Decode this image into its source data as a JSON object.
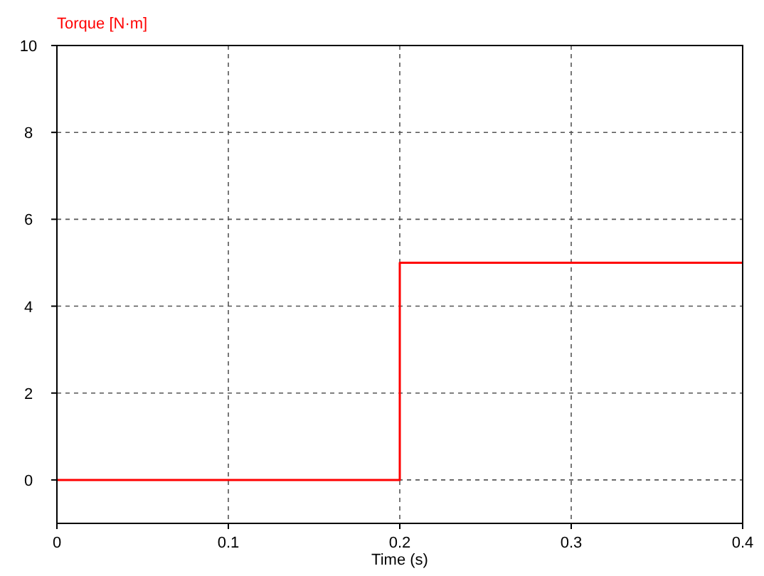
{
  "chart_data": {
    "type": "step",
    "xlabel": "Time (s)",
    "ylabel": "Torque [N·m]",
    "x": [
      0,
      0.2,
      0.4
    ],
    "series": [
      {
        "color": "#ff0000",
        "values": [
          0,
          5,
          5
        ]
      }
    ],
    "xlim": [
      0,
      0.4
    ],
    "ylim": [
      -1,
      10
    ],
    "xticks": [
      0,
      0.1,
      0.2,
      0.3,
      0.4
    ],
    "yticks": [
      0,
      2,
      4,
      6,
      8,
      10
    ],
    "grid": true
  }
}
